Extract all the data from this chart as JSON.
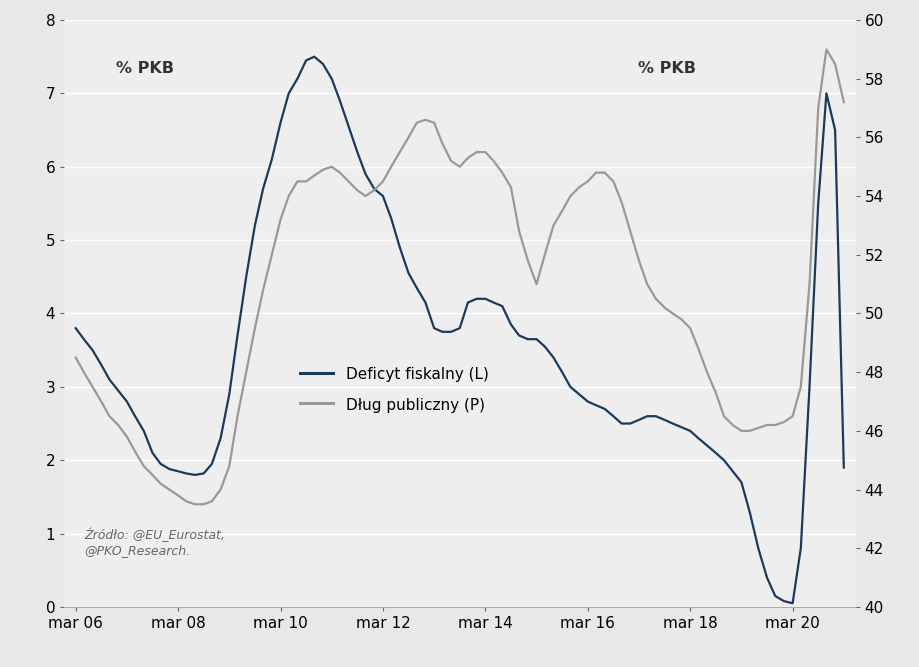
{
  "deficit_color": "#1a3a5c",
  "debt_color": "#999999",
  "left_ylim": [
    0,
    8
  ],
  "right_ylim": [
    40,
    60
  ],
  "left_yticks": [
    0,
    1,
    2,
    3,
    4,
    5,
    6,
    7,
    8
  ],
  "right_yticks": [
    40,
    42,
    44,
    46,
    48,
    50,
    52,
    54,
    56,
    58,
    60
  ],
  "xtick_labels": [
    "mar 06",
    "mar 08",
    "mar 10",
    "mar 12",
    "mar 14",
    "mar 16",
    "mar 18",
    "mar 20"
  ],
  "xtick_positions": [
    2006.17,
    2008.17,
    2010.17,
    2012.17,
    2014.17,
    2016.17,
    2018.17,
    2020.17
  ],
  "xlim": [
    2005.95,
    2021.4
  ],
  "left_label": "% PKB",
  "right_label": "% PKB",
  "legend_deficit": "Deficyt fiskalny (L)",
  "legend_debt": "Dług publiczny (P)",
  "source_text": "Źródło: @EU_Eurostat,\n@PKO_Research.",
  "background_color": "#e8e8e8",
  "plot_bg_color": "#eeeeee",
  "line_width": 1.6,
  "grid_color": "#ffffff",
  "grid_linewidth": 1.0,
  "deficit_x": [
    2006.17,
    2006.33,
    2006.5,
    2006.67,
    2006.83,
    2007.0,
    2007.17,
    2007.33,
    2007.5,
    2007.67,
    2007.83,
    2008.0,
    2008.17,
    2008.33,
    2008.5,
    2008.67,
    2008.83,
    2009.0,
    2009.17,
    2009.33,
    2009.5,
    2009.67,
    2009.83,
    2010.0,
    2010.17,
    2010.33,
    2010.5,
    2010.67,
    2010.83,
    2011.0,
    2011.17,
    2011.33,
    2011.5,
    2011.67,
    2011.83,
    2012.0,
    2012.17,
    2012.33,
    2012.5,
    2012.67,
    2012.83,
    2013.0,
    2013.17,
    2013.33,
    2013.5,
    2013.67,
    2013.83,
    2014.0,
    2014.17,
    2014.33,
    2014.5,
    2014.67,
    2014.83,
    2015.0,
    2015.17,
    2015.33,
    2015.5,
    2015.67,
    2015.83,
    2016.0,
    2016.17,
    2016.33,
    2016.5,
    2016.67,
    2016.83,
    2017.0,
    2017.17,
    2017.33,
    2017.5,
    2017.67,
    2017.83,
    2018.0,
    2018.17,
    2018.33,
    2018.5,
    2018.67,
    2018.83,
    2019.0,
    2019.17,
    2019.33,
    2019.5,
    2019.67,
    2019.83,
    2020.0,
    2020.17,
    2020.33,
    2020.5,
    2020.67,
    2020.83,
    2021.0,
    2021.17
  ],
  "deficit_y": [
    3.8,
    3.65,
    3.5,
    3.3,
    3.1,
    2.95,
    2.8,
    2.6,
    2.4,
    2.1,
    1.95,
    1.88,
    1.85,
    1.82,
    1.8,
    1.82,
    1.95,
    2.3,
    2.9,
    3.7,
    4.5,
    5.2,
    5.7,
    6.1,
    6.6,
    7.0,
    7.2,
    7.45,
    7.5,
    7.4,
    7.2,
    6.9,
    6.55,
    6.2,
    5.9,
    5.7,
    5.6,
    5.3,
    4.9,
    4.55,
    4.35,
    4.15,
    3.8,
    3.75,
    3.75,
    3.8,
    4.15,
    4.2,
    4.2,
    4.15,
    4.1,
    3.85,
    3.7,
    3.65,
    3.65,
    3.55,
    3.4,
    3.2,
    3.0,
    2.9,
    2.8,
    2.75,
    2.7,
    2.6,
    2.5,
    2.5,
    2.55,
    2.6,
    2.6,
    2.55,
    2.5,
    2.45,
    2.4,
    2.3,
    2.2,
    2.1,
    2.0,
    1.85,
    1.7,
    1.3,
    0.8,
    0.4,
    0.15,
    0.08,
    0.05,
    0.8,
    3.0,
    5.5,
    7.0,
    6.5,
    1.9
  ],
  "debt_x": [
    2006.17,
    2006.33,
    2006.5,
    2006.67,
    2006.83,
    2007.0,
    2007.17,
    2007.33,
    2007.5,
    2007.67,
    2007.83,
    2008.0,
    2008.17,
    2008.33,
    2008.5,
    2008.67,
    2008.83,
    2009.0,
    2009.17,
    2009.33,
    2009.5,
    2009.67,
    2009.83,
    2010.0,
    2010.17,
    2010.33,
    2010.5,
    2010.67,
    2010.83,
    2011.0,
    2011.17,
    2011.33,
    2011.5,
    2011.67,
    2011.83,
    2012.0,
    2012.17,
    2012.33,
    2012.5,
    2012.67,
    2012.83,
    2013.0,
    2013.17,
    2013.33,
    2013.5,
    2013.67,
    2013.83,
    2014.0,
    2014.17,
    2014.33,
    2014.5,
    2014.67,
    2014.83,
    2015.0,
    2015.17,
    2015.33,
    2015.5,
    2015.67,
    2015.83,
    2016.0,
    2016.17,
    2016.33,
    2016.5,
    2016.67,
    2016.83,
    2017.0,
    2017.17,
    2017.33,
    2017.5,
    2017.67,
    2017.83,
    2018.0,
    2018.17,
    2018.33,
    2018.5,
    2018.67,
    2018.83,
    2019.0,
    2019.17,
    2019.33,
    2019.5,
    2019.67,
    2019.83,
    2020.0,
    2020.17,
    2020.33,
    2020.5,
    2020.67,
    2020.83,
    2021.0,
    2021.17
  ],
  "debt_y": [
    48.5,
    48.0,
    47.5,
    47.0,
    46.5,
    46.2,
    45.8,
    45.3,
    44.8,
    44.5,
    44.2,
    44.0,
    43.8,
    43.6,
    43.5,
    43.5,
    43.6,
    44.0,
    44.8,
    46.5,
    48.0,
    49.5,
    50.8,
    52.0,
    53.2,
    54.0,
    54.5,
    54.5,
    54.7,
    54.9,
    55.0,
    54.8,
    54.5,
    54.2,
    54.0,
    54.2,
    54.5,
    55.0,
    55.5,
    56.0,
    56.5,
    56.6,
    56.5,
    55.8,
    55.2,
    55.0,
    55.3,
    55.5,
    55.5,
    55.2,
    54.8,
    54.3,
    52.8,
    51.8,
    51.0,
    52.0,
    53.0,
    53.5,
    54.0,
    54.3,
    54.5,
    54.8,
    54.8,
    54.5,
    53.8,
    52.8,
    51.8,
    51.0,
    50.5,
    50.2,
    50.0,
    49.8,
    49.5,
    48.8,
    48.0,
    47.3,
    46.5,
    46.2,
    46.0,
    46.0,
    46.1,
    46.2,
    46.2,
    46.3,
    46.5,
    47.5,
    51.0,
    57.0,
    59.0,
    58.5,
    57.2
  ]
}
